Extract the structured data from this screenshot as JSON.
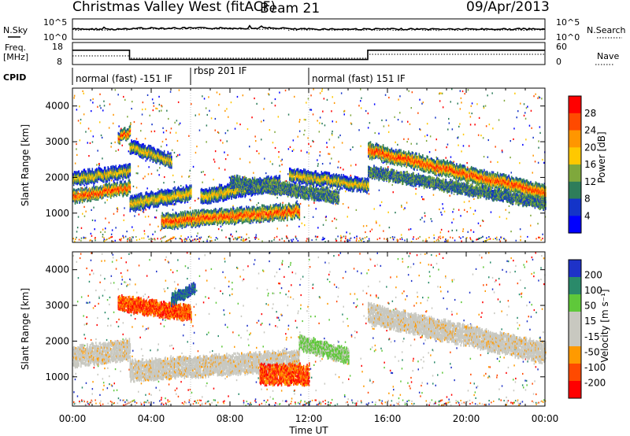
{
  "header": {
    "station": "Christmas Valley West (fitACF)",
    "beam": "Beam 21",
    "date": "09/Apr/2013"
  },
  "noise_panel": {
    "left_label": "N.Sky",
    "right_label": "N.Search",
    "tick_top": "10^5",
    "tick_bottom": "10^0"
  },
  "freq_panel": {
    "left_label_1": "Freq.",
    "left_label_2": "[MHz]",
    "right_label": "Nave",
    "left_ticks": [
      "18",
      "8"
    ],
    "right_ticks": [
      "60",
      "0"
    ],
    "freq_mhz_x": [
      0,
      2.9,
      2.9,
      15.0,
      15.0,
      24
    ],
    "freq_mhz_y": [
      14.5,
      14.5,
      10.3,
      10.3,
      14.5,
      14.5
    ]
  },
  "cpid": {
    "label": "CPID",
    "segments": [
      {
        "start_hour": 0.0,
        "name": "normal (fast) -151 IF"
      },
      {
        "start_hour": 6.0,
        "name": "rbsp 201 IF"
      },
      {
        "start_hour": 12.0,
        "name": "normal (fast) 151 IF"
      }
    ]
  },
  "power_panel": {
    "ylabel": "Slant Range [km]",
    "yticks": [
      1000,
      2000,
      3000,
      4000
    ],
    "colorbar_label": "Power [dB]",
    "colorbar_ticks": [
      "28",
      "24",
      "20",
      "16",
      "12",
      "8",
      "4"
    ],
    "colors": [
      "#ff0000",
      "#ff4a00",
      "#ff9600",
      "#ffc800",
      "#7fa83c",
      "#2e7d5a",
      "#1434c8",
      "#0000ff"
    ]
  },
  "velocity_panel": {
    "ylabel": "Slant Range [km]",
    "yticks": [
      1000,
      2000,
      3000,
      4000
    ],
    "colorbar_label": "Velocity [m s⁻¹]",
    "colorbar_ticks": [
      "200",
      "100",
      "50",
      "15",
      "-15",
      "-50",
      "-100",
      "-200"
    ],
    "colors": [
      "#1e32c8",
      "#2a8a6a",
      "#5fc83a",
      "#c8c8c0",
      "#c8c8c0",
      "#ff9a00",
      "#ff4a00",
      "#ff0000"
    ]
  },
  "x_axis": {
    "label": "Time UT",
    "ticks": [
      "00:00",
      "04:00",
      "08:00",
      "12:00",
      "16:00",
      "20:00",
      "00:00"
    ]
  },
  "chart_data": {
    "type": "heatmap",
    "title": "Christmas Valley West (fitACF)",
    "xlabel": "Time UT",
    "ylabel": "Slant Range [km]",
    "xlim_hours": [
      0,
      24
    ],
    "ylim_km": [
      180,
      4500
    ],
    "power_bands": [
      {
        "hours": [
          0.0,
          2.9
        ],
        "center_km": [
          1500,
          1750
        ],
        "width_km": 300,
        "level": "high"
      },
      {
        "hours": [
          0.0,
          2.9
        ],
        "center_km": [
          2000,
          2200
        ],
        "width_km": 300,
        "level": "medium"
      },
      {
        "hours": [
          2.3,
          2.9
        ],
        "center_km": [
          3150,
          3300
        ],
        "width_km": 250,
        "level": "high"
      },
      {
        "hours": [
          2.9,
          6.0
        ],
        "center_km": [
          1300,
          1600
        ],
        "width_km": 350,
        "level": "medium"
      },
      {
        "hours": [
          2.9,
          5.0
        ],
        "center_km": [
          2900,
          2500
        ],
        "width_km": 300,
        "level": "medium"
      },
      {
        "hours": [
          4.5,
          11.5
        ],
        "center_km": [
          800,
          1100
        ],
        "width_km": 350,
        "level": "high"
      },
      {
        "hours": [
          6.5,
          10.5
        ],
        "center_km": [
          1500,
          1900
        ],
        "width_km": 350,
        "level": "medium"
      },
      {
        "hours": [
          8.0,
          13.5
        ],
        "center_km": [
          1900,
          1500
        ],
        "width_km": 300,
        "level": "low"
      },
      {
        "hours": [
          11.0,
          15.0
        ],
        "center_km": [
          2100,
          1800
        ],
        "width_km": 300,
        "level": "medium"
      },
      {
        "hours": [
          15.0,
          24.0
        ],
        "center_km": [
          2800,
          1600
        ],
        "width_km": 350,
        "level": "high"
      },
      {
        "hours": [
          15.0,
          24.0
        ],
        "center_km": [
          2200,
          1300
        ],
        "width_km": 250,
        "level": "low"
      }
    ],
    "velocity_bands": [
      {
        "hours": [
          0.0,
          2.9
        ],
        "center_km": [
          1600,
          1800
        ],
        "width_km": 500,
        "level": "ground"
      },
      {
        "hours": [
          2.3,
          6.0
        ],
        "center_km": [
          3100,
          2800
        ],
        "width_km": 350,
        "level": "negative"
      },
      {
        "hours": [
          5.0,
          6.2
        ],
        "center_km": [
          3200,
          3500
        ],
        "width_km": 250,
        "level": "positive"
      },
      {
        "hours": [
          2.9,
          11.5
        ],
        "center_km": [
          1200,
          1500
        ],
        "width_km": 500,
        "level": "ground"
      },
      {
        "hours": [
          9.5,
          12.0
        ],
        "center_km": [
          1100,
          1100
        ],
        "width_km": 500,
        "level": "negative"
      },
      {
        "hours": [
          11.5,
          14.0
        ],
        "center_km": [
          2000,
          1600
        ],
        "width_km": 350,
        "level": "slow-positive"
      },
      {
        "hours": [
          15.0,
          24.0
        ],
        "center_km": [
          2800,
          1700
        ],
        "width_km": 500,
        "level": "ground"
      }
    ]
  }
}
